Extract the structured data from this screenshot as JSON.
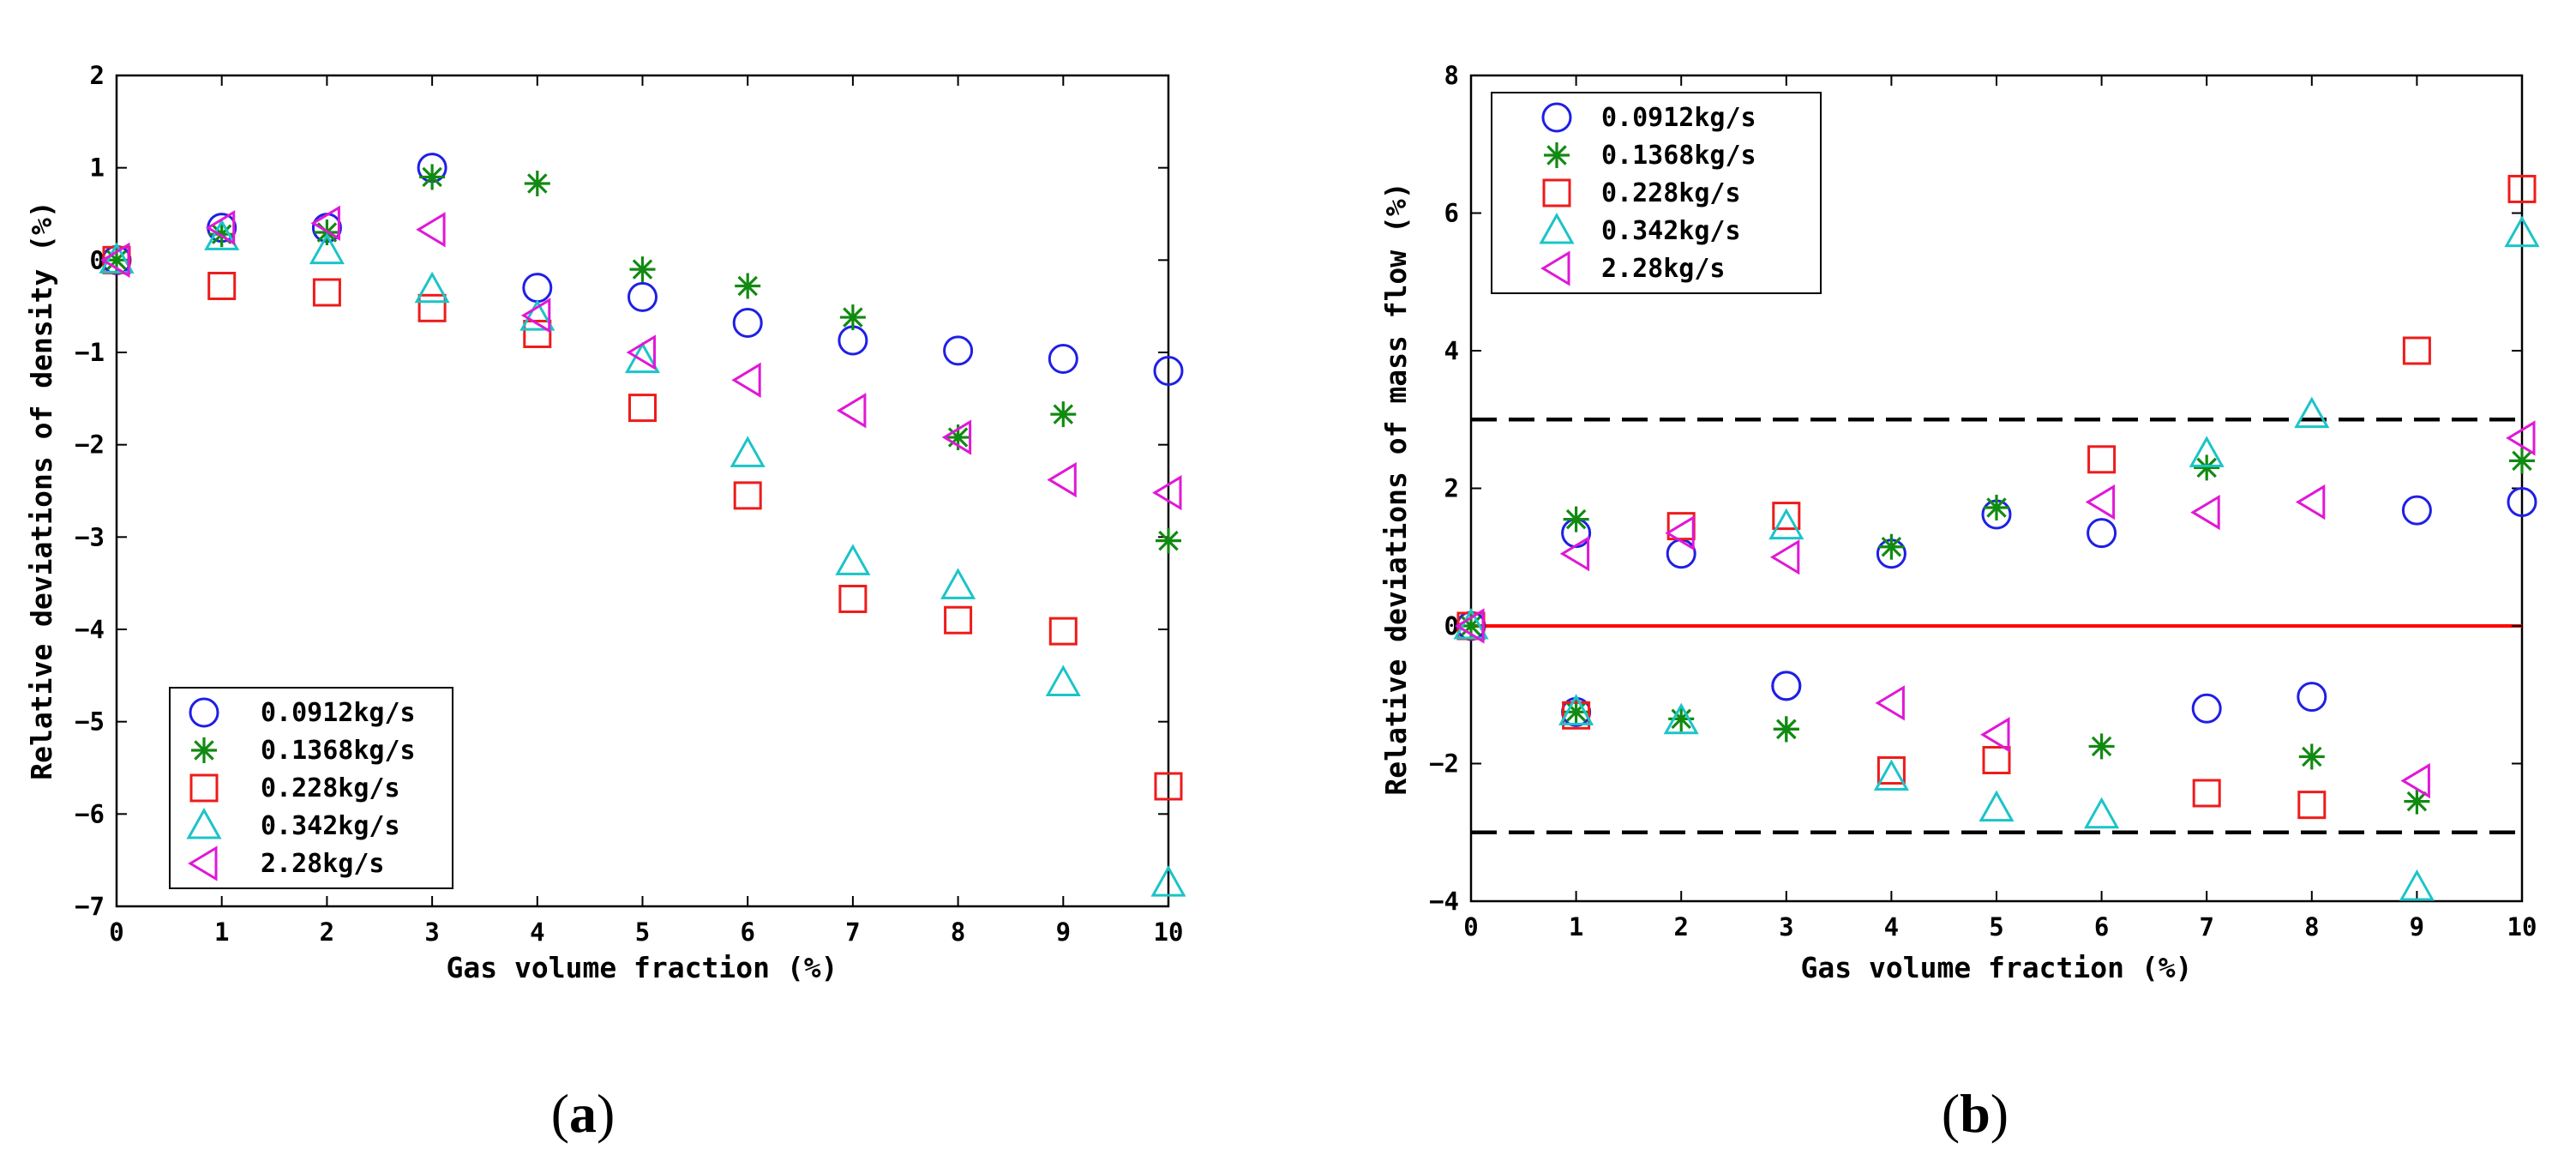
{
  "legend_labels": [
    "0.0912kg/s",
    "0.1368kg/s",
    "0.228kg/s",
    "0.342kg/s",
    "2.28kg/s"
  ],
  "series_colors": [
    "#1f1fe6",
    "#118a11",
    "#ee1b1b",
    "#1bc4c8",
    "#e018d6"
  ],
  "series_markers": [
    "circle",
    "asterisk",
    "square",
    "triangle-up",
    "triangle-left"
  ],
  "panels": {
    "a": {
      "open": "(",
      "letter": "a",
      "close": ")"
    },
    "b": {
      "open": "(",
      "letter": "b",
      "close": ")"
    }
  },
  "chart_data": [
    {
      "type": "scatter",
      "panel": "a",
      "xlabel": "Gas volume fraction (%)",
      "ylabel": "Relative deviations of density (%)",
      "xlim": [
        0,
        10
      ],
      "ylim": [
        -7,
        2
      ],
      "xticks": [
        0,
        1,
        2,
        3,
        4,
        5,
        6,
        7,
        8,
        9,
        10
      ],
      "yticks": [
        -7,
        -6,
        -5,
        -4,
        -3,
        -2,
        -1,
        0,
        1,
        2
      ],
      "legend_position": "bottom-left",
      "x": [
        0,
        1,
        2,
        3,
        4,
        5,
        6,
        7,
        8,
        9,
        10
      ],
      "series": [
        {
          "name": "0.0912kg/s",
          "values": [
            0,
            0.35,
            0.35,
            1.0,
            -0.3,
            -0.4,
            -0.68,
            -0.87,
            -0.98,
            -1.07,
            -1.2
          ]
        },
        {
          "name": "0.1368kg/s",
          "values": [
            0,
            0.28,
            0.3,
            0.9,
            0.83,
            -0.1,
            -0.28,
            -0.62,
            -1.92,
            -1.67,
            -3.04
          ]
        },
        {
          "name": "0.228kg/s",
          "values": [
            0,
            -0.28,
            -0.35,
            -0.52,
            -0.8,
            -1.6,
            -2.55,
            -3.67,
            -3.9,
            -4.02,
            -5.7
          ]
        },
        {
          "name": "0.342kg/s",
          "values": [
            0,
            0.25,
            0.1,
            -0.32,
            -0.62,
            -1.08,
            -2.1,
            -3.27,
            -3.53,
            -4.58,
            -6.75
          ]
        },
        {
          "name": "2.28kg/s",
          "values": [
            0,
            0.35,
            0.4,
            0.33,
            -0.6,
            -1.0,
            -1.3,
            -1.63,
            -1.92,
            -2.38,
            -2.52
          ]
        }
      ]
    },
    {
      "type": "scatter",
      "panel": "b",
      "xlabel": "Gas volume fraction (%)",
      "ylabel": "Relative deviations of mass flow (%)",
      "xlim": [
        0,
        10
      ],
      "ylim": [
        -4,
        8
      ],
      "xticks": [
        0,
        1,
        2,
        3,
        4,
        5,
        6,
        7,
        8,
        9,
        10
      ],
      "yticks": [
        -4,
        -2,
        0,
        2,
        4,
        6,
        8
      ],
      "legend_position": "top-left",
      "reference_lines": [
        {
          "y": 3,
          "style": "dashed",
          "color": "#000000"
        },
        {
          "y": -3,
          "style": "dashed",
          "color": "#000000"
        },
        {
          "y": 0,
          "style": "solid",
          "color": "#ff0000"
        }
      ],
      "series": [
        {
          "name": "0.0912kg/s",
          "x": [
            0,
            1,
            2,
            3,
            4,
            5,
            6,
            1,
            3,
            7,
            8,
            9,
            10
          ],
          "values": [
            0,
            1.35,
            1.05,
            -0.87,
            1.05,
            1.62,
            1.35,
            -1.25,
            -0.87,
            -1.2,
            -1.03,
            1.68,
            1.8
          ]
        },
        {
          "name": "0.1368kg/s",
          "x": [
            0,
            1,
            2,
            3,
            4,
            5,
            6,
            7,
            8,
            9,
            10,
            3,
            1
          ],
          "values": [
            0,
            1.55,
            -1.35,
            -1.5,
            1.15,
            1.72,
            -1.75,
            2.3,
            -1.9,
            -2.55,
            2.4,
            -1.5,
            -1.25
          ]
        },
        {
          "name": "0.228kg/s",
          "x": [
            0,
            1,
            2,
            3,
            4,
            5,
            6,
            7,
            8,
            9,
            10
          ],
          "values": [
            0,
            -1.3,
            1.45,
            1.6,
            -2.1,
            -1.95,
            2.42,
            -2.43,
            -2.6,
            4.0,
            6.35
          ]
        },
        {
          "name": "0.342kg/s",
          "x": [
            0,
            1,
            2,
            3,
            4,
            5,
            6,
            7,
            8,
            9,
            10
          ],
          "values": [
            0,
            -1.25,
            -1.38,
            1.45,
            -2.2,
            -2.65,
            -2.75,
            2.5,
            3.07,
            -3.8,
            5.7
          ]
        },
        {
          "name": "2.28kg/s",
          "x": [
            0,
            1,
            2,
            3,
            4,
            5,
            6,
            7,
            8,
            9,
            10
          ],
          "values": [
            0,
            1.05,
            1.35,
            1.0,
            -1.12,
            -1.58,
            1.8,
            1.65,
            1.8,
            -2.25,
            2.73
          ]
        }
      ]
    }
  ]
}
